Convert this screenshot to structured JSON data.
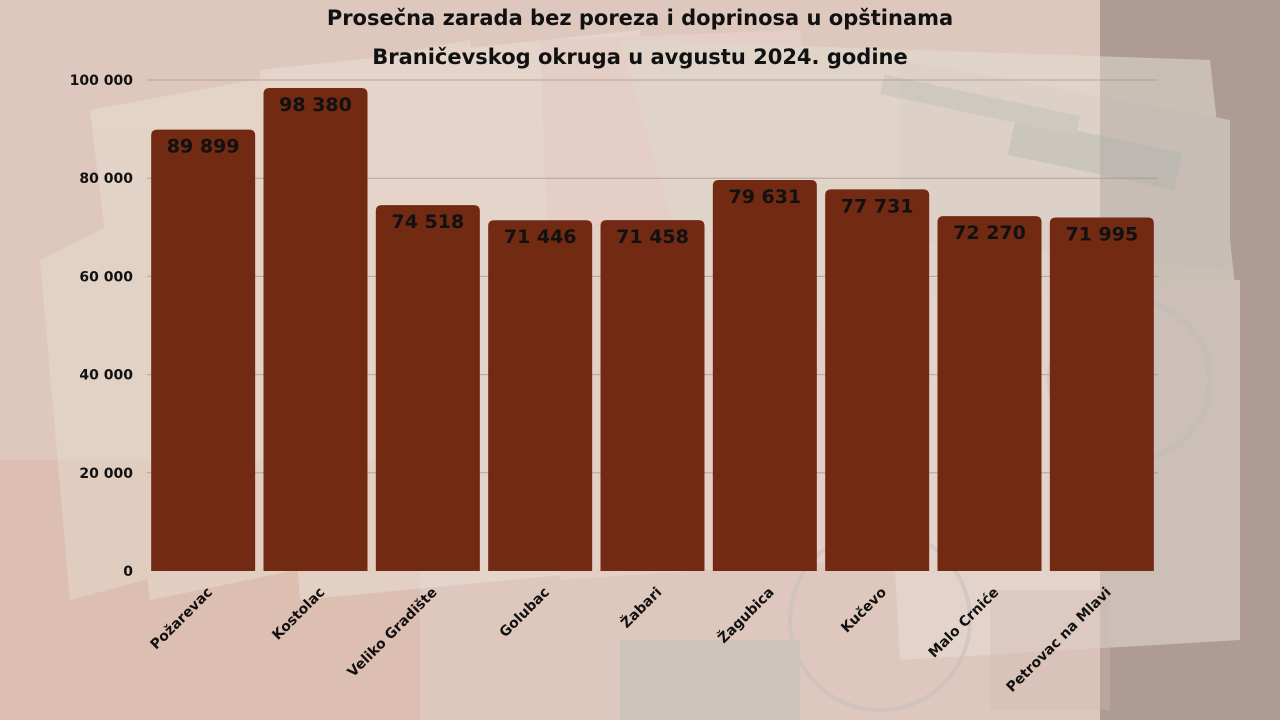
{
  "colors": {
    "bar": "#722a12",
    "text": "#111111",
    "gridline": "#a89890"
  },
  "chart_data": {
    "type": "bar",
    "title": "Prosečna zarada bez poreza i doprinosa u opštinama Braničevskog okruga u avgustu 2024. godine",
    "title_lines": [
      "Prosečna zarada bez poreza i doprinosa u opštinama",
      "Braničevskog okruga u avgustu 2024. godine"
    ],
    "categories": [
      "Požarevac",
      "Kostolac",
      "Veliko Gradište",
      "Golubac",
      "Žabari",
      "Žagubica",
      "Kučevo",
      "Malo Crniće",
      "Petrovac na Mlavi"
    ],
    "values": [
      89899,
      98380,
      74518,
      71446,
      71458,
      79631,
      77731,
      72270,
      71995
    ],
    "data_labels": [
      "89 899",
      "98 380",
      "74 518",
      "71 446",
      "71 458",
      "79 631",
      "77 731",
      "72 270",
      "71 995"
    ],
    "yticks": [
      0,
      20000,
      40000,
      60000,
      80000,
      100000
    ],
    "ytick_labels": [
      "0",
      "20 000",
      "40 000",
      "60 000",
      "80 000",
      "100 000"
    ],
    "ylim": [
      0,
      100000
    ],
    "grid": true,
    "legend": "none"
  }
}
